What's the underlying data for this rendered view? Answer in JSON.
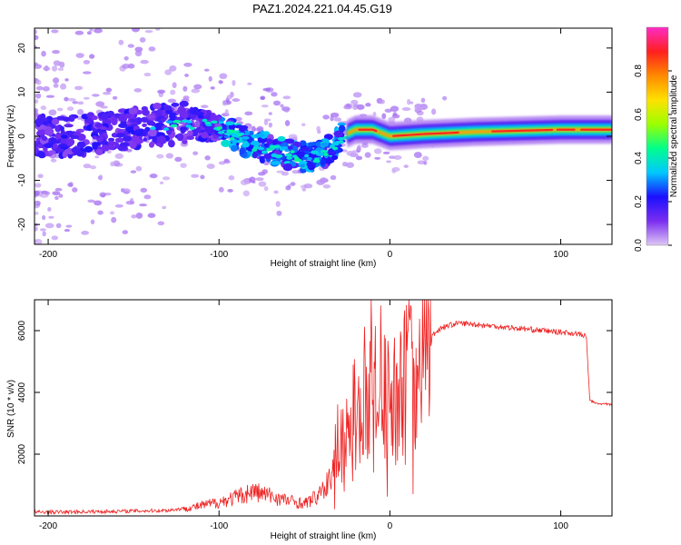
{
  "figure_title": "PAZ1.2024.221.04.45.G19",
  "chart_data": [
    {
      "type": "heatmap",
      "title": "PAZ1.2024.221.04.45.G19",
      "xlabel": "Height of straight line (km)",
      "ylabel": "Frequency (Hz)",
      "xlim": [
        -208,
        130
      ],
      "ylim": [
        -24.5,
        24.5
      ],
      "x_ticks": [
        -200,
        -100,
        0,
        100
      ],
      "y_ticks": [
        -20,
        -10,
        0,
        10,
        20
      ],
      "colorbar": {
        "label": "Normalized spectral amplitude",
        "range": [
          0,
          1
        ],
        "ticks": [
          0.0,
          0.2,
          0.4,
          0.6,
          0.8
        ],
        "colors": [
          "#dfc7f5",
          "#7b2ef0",
          "#1a10ff",
          "#00c8ff",
          "#00ff8c",
          "#9cff00",
          "#ffe100",
          "#ff8a00",
          "#ff1f1f",
          "#ff2cc6"
        ]
      },
      "ridge": {
        "x": [
          -208,
          -180,
          -150,
          -120,
          -100,
          -80,
          -60,
          -45,
          -35,
          -28,
          -20,
          -10,
          0,
          20,
          50,
          100,
          130
        ],
        "y": [
          0,
          0,
          2,
          3,
          2,
          -2,
          -4,
          -5,
          -3,
          0,
          1.5,
          1.5,
          0,
          0.5,
          1,
          1.5,
          1.5
        ]
      },
      "grid": false,
      "legend": "right"
    },
    {
      "type": "line",
      "xlabel": "Height of straight line (km)",
      "ylabel": "SNR (10 * v/v)",
      "xlim": [
        -208,
        130
      ],
      "ylim": [
        0,
        7000
      ],
      "x_ticks": [
        -200,
        -100,
        0,
        100
      ],
      "y_ticks": [
        2000,
        4000,
        6000
      ],
      "series": [
        {
          "color": "#ee2222",
          "x": [
            -208,
            -190,
            -170,
            -150,
            -130,
            -115,
            -100,
            -90,
            -80,
            -70,
            -60,
            -50,
            -40,
            -35,
            -30,
            -25,
            -20,
            -15,
            -10,
            -5,
            0,
            5,
            10,
            20,
            30,
            40,
            50,
            60,
            70,
            80,
            90,
            100,
            110,
            115,
            117,
            120,
            130
          ],
          "y": [
            120,
            130,
            140,
            160,
            180,
            280,
            450,
            600,
            800,
            650,
            500,
            400,
            700,
            1200,
            2000,
            2600,
            3400,
            3800,
            4000,
            3900,
            3600,
            4000,
            4600,
            5600,
            6100,
            6250,
            6200,
            6150,
            6100,
            6050,
            6000,
            5950,
            5900,
            5800,
            3750,
            3650,
            3600
          ]
        }
      ],
      "grid": false
    }
  ]
}
